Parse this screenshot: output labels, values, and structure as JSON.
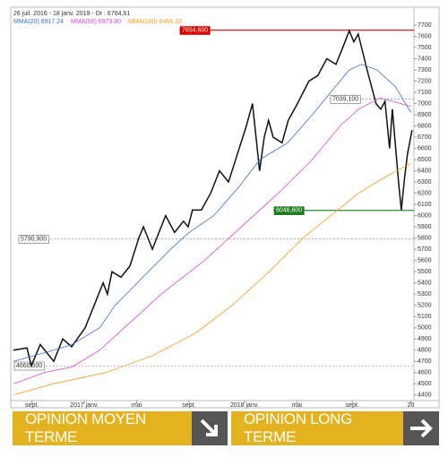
{
  "chart_data": {
    "type": "line",
    "title": "26 juil. 2016 - 18 janv. 2019 - Dr : 6764,61",
    "xlim": [
      0,
      130
    ],
    "ylim": [
      4350,
      7700
    ],
    "xticks": [
      {
        "value": 6,
        "label": "sept."
      },
      {
        "value": 23,
        "label": "2017 janv."
      },
      {
        "value": 40,
        "label": "mai"
      },
      {
        "value": 57,
        "label": "sept."
      },
      {
        "value": 75,
        "label": "2018 janv."
      },
      {
        "value": 92,
        "label": "mai"
      },
      {
        "value": 110,
        "label": "sept."
      },
      {
        "value": 129,
        "label": "20"
      }
    ],
    "yticks": [
      4400,
      4500,
      4600,
      4700,
      4800,
      4900,
      5000,
      5100,
      5200,
      5300,
      5400,
      5500,
      5600,
      5700,
      5800,
      5900,
      6000,
      6100,
      6200,
      6300,
      6400,
      6500,
      6600,
      6700,
      6800,
      6900,
      7000,
      7100,
      7200,
      7300,
      7400,
      7500,
      7600,
      7700
    ],
    "grid": false,
    "series": [
      {
        "color": "#111111",
        "width": 1.5,
        "x": [
          0,
          4.4,
          5.8,
          8.7,
          13.1,
          16,
          18.9,
          23.3,
          26.2,
          29.1,
          30.5,
          32,
          34.9,
          37.8,
          40.7,
          42.2,
          45.1,
          46.5,
          49.4,
          52.3,
          55.2,
          56.7,
          58.1,
          61,
          64,
          66.9,
          69.8,
          72.7,
          75.6,
          77.6,
          79.9,
          81.4,
          82.8,
          84.3,
          87.2,
          89.2,
          92.2,
          95.9,
          98.8,
          101.7,
          104.7,
          107.6,
          109,
          110.5,
          111.9,
          114.8,
          117.7,
          119.2,
          120.6,
          122.1,
          123,
          125,
          125.9,
          127,
          127.9,
          129.4
        ],
        "values": [
          4800,
          4820,
          4660,
          4850,
          4700,
          4900,
          4830,
          5000,
          5200,
          5400,
          5300,
          5500,
          5450,
          5550,
          5800,
          5900,
          5700,
          5800,
          6000,
          5850,
          5950,
          5900,
          6050,
          6050,
          6200,
          6400,
          6300,
          6550,
          6800,
          7000,
          6400,
          6700,
          6850,
          6700,
          6650,
          6850,
          7000,
          7200,
          7250,
          7400,
          7350,
          7550,
          7650,
          7550,
          7620,
          7300,
          7000,
          6950,
          7020,
          6600,
          6950,
          6300,
          6050,
          6350,
          6550,
          6764
        ]
      },
      {
        "name": "MMA(20) 6917.24",
        "color": "#3a6fd8",
        "width": 0.8,
        "x": [
          0,
          13,
          19,
          28,
          33,
          42,
          51,
          57,
          65,
          73,
          80,
          89,
          97,
          103,
          109,
          113,
          118,
          124,
          129
        ],
        "values": [
          4700,
          4800,
          4850,
          5000,
          5200,
          5450,
          5700,
          5850,
          6000,
          6250,
          6500,
          6650,
          6900,
          7100,
          7300,
          7350,
          7300,
          7150,
          6920
        ]
      },
      {
        "name": "MMA(50) 6973.80",
        "color": "#e040e0",
        "width": 0.8,
        "x": [
          0,
          10,
          19,
          28,
          36,
          48,
          62,
          74,
          86,
          97,
          106,
          112,
          119,
          129
        ],
        "values": [
          4500,
          4600,
          4650,
          4800,
          5000,
          5300,
          5600,
          5900,
          6200,
          6500,
          6800,
          6950,
          7050,
          6974
        ]
      },
      {
        "name": "MMA(100) 6466.20",
        "color": "#ff9a1a",
        "width": 0.8,
        "x": [
          0,
          13,
          30,
          45,
          59,
          71,
          83,
          94,
          103,
          112,
          121,
          129
        ],
        "values": [
          4400,
          4500,
          4600,
          4750,
          4950,
          5200,
          5500,
          5800,
          6000,
          6200,
          6350,
          6466
        ]
      }
    ],
    "levels": [
      {
        "value": 7654.6,
        "label": "7654,600",
        "color": "#e00000",
        "dash": false
      },
      {
        "value": 7039.1,
        "label": "7039,100",
        "color": "#888888",
        "dash": true
      },
      {
        "value": 6046.6,
        "label": "6046,600",
        "color": "#1a7a1a",
        "dash": false
      },
      {
        "value": 5790.9,
        "label": "5790,900",
        "color": "#888888",
        "dash": true
      },
      {
        "value": 4660.5,
        "label": "4660,500",
        "color": "#888888",
        "dash": true
      }
    ]
  },
  "buttons": [
    {
      "label": "OPINION MOYEN TERME"
    },
    {
      "label": "OPINION LONG TERME"
    }
  ]
}
